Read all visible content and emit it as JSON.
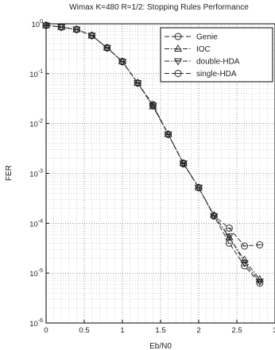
{
  "chart_data": {
    "type": "line",
    "title": "Wimax K=480 R=1/2: Stopping Rules Performance",
    "xlabel": "Eb/N0",
    "ylabel": "FER",
    "xlim": [
      0,
      3
    ],
    "ylim": [
      1e-06,
      1
    ],
    "y_scale": "log",
    "x_ticks": [
      "0",
      "0.5",
      "1",
      "1.5",
      "2",
      "2.5",
      "3"
    ],
    "y_ticks": [
      {
        "base": "10",
        "exp": "0"
      },
      {
        "base": "10",
        "exp": "-1"
      },
      {
        "base": "10",
        "exp": "-2"
      },
      {
        "base": "10",
        "exp": "-3"
      },
      {
        "base": "10",
        "exp": "-4"
      },
      {
        "base": "10",
        "exp": "-5"
      },
      {
        "base": "10",
        "exp": "-6"
      }
    ],
    "grid": "dotted, major and minor",
    "legend_position": "top-right",
    "series": [
      {
        "name": "Genie",
        "marker": "circle-dash",
        "line": "dashed",
        "x": [
          0,
          0.2,
          0.4,
          0.6,
          0.8,
          1.0,
          1.2,
          1.4,
          1.6,
          1.8,
          2.0,
          2.2,
          2.4,
          2.6,
          2.8
        ],
        "y": [
          0.93,
          0.86,
          0.77,
          0.58,
          0.33,
          0.175,
          0.065,
          0.024,
          0.0061,
          0.00155,
          0.00052,
          0.00014,
          4e-05,
          1.4e-05,
          6.3e-06
        ]
      },
      {
        "name": "IOC",
        "marker": "triangle-up",
        "line": "dash-dot",
        "x": [
          0,
          0.2,
          0.4,
          0.6,
          0.8,
          1.0,
          1.2,
          1.4,
          1.6,
          1.8,
          2.0,
          2.2,
          2.4,
          2.6,
          2.8
        ],
        "y": [
          0.93,
          0.86,
          0.77,
          0.58,
          0.33,
          0.175,
          0.065,
          0.022,
          0.0061,
          0.0016,
          0.00052,
          0.000145,
          5.2e-05,
          1.85e-05,
          7.5e-06
        ]
      },
      {
        "name": "double-HDA",
        "marker": "triangle-down",
        "line": "dash-dot",
        "x": [
          0,
          0.2,
          0.4,
          0.6,
          0.8,
          1.0,
          1.2,
          1.4,
          1.6,
          1.8,
          2.0,
          2.2,
          2.4,
          2.6,
          2.8
        ],
        "y": [
          0.93,
          0.86,
          0.77,
          0.58,
          0.33,
          0.175,
          0.065,
          0.023,
          0.0061,
          0.0016,
          0.00052,
          0.00014,
          5.5e-05,
          1.6e-05,
          6.8e-06
        ]
      },
      {
        "name": "single-HDA",
        "marker": "circle-dash",
        "line": "dashed",
        "x": [
          0,
          0.2,
          0.4,
          0.6,
          0.8,
          1.0,
          1.2,
          1.4,
          1.6,
          1.8,
          2.0,
          2.2,
          2.4,
          2.6,
          2.8
        ],
        "y": [
          0.93,
          0.86,
          0.77,
          0.58,
          0.33,
          0.175,
          0.065,
          0.023,
          0.0061,
          0.0016,
          0.00052,
          0.00014,
          8e-05,
          3.5e-05,
          3.7e-05
        ]
      }
    ]
  }
}
